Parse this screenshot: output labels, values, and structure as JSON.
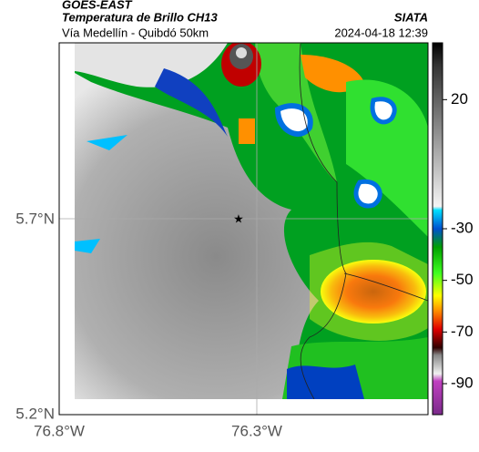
{
  "header": {
    "satellite": "GOES-EAST",
    "product": "Temperatura de Brillo CH13",
    "source": "SIATA",
    "route": "Vía Medellín - Quibdó 50km",
    "datetime": "2024-04-18 12:39"
  },
  "axes": {
    "lat_labels": [
      "5.7°N",
      "5.2°N"
    ],
    "lon_labels": [
      "76.8°W",
      "76.3°W"
    ]
  },
  "colorbar": {
    "range": [
      42,
      -102
    ],
    "ticks": [
      20,
      -30,
      -50,
      -70,
      -90
    ]
  }
}
